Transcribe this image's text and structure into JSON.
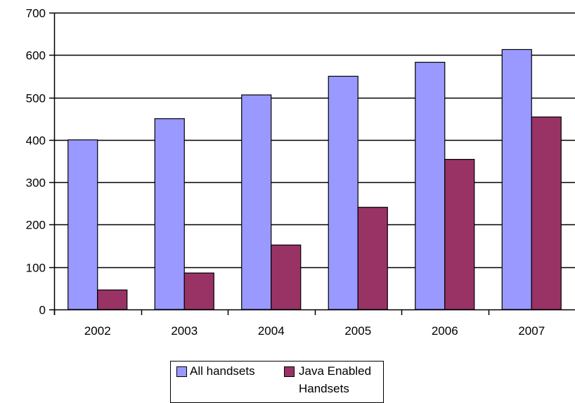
{
  "chart_data": {
    "type": "bar",
    "title": "",
    "xlabel": "",
    "ylabel": "",
    "categories": [
      "2002",
      "2003",
      "2004",
      "2005",
      "2006",
      "2007"
    ],
    "series": [
      {
        "name": "All handsets",
        "color": "#9999ff",
        "values": [
          400,
          450,
          506,
          550,
          583,
          613
        ]
      },
      {
        "name": "Java Enabled Handsets",
        "color": "#993366",
        "values": [
          46,
          86,
          152,
          241,
          354,
          454
        ]
      }
    ],
    "ylim": [
      0,
      700
    ],
    "yticks": [
      0,
      100,
      200,
      300,
      400,
      500,
      600,
      700
    ],
    "grid": true,
    "legend_position": "bottom"
  },
  "legend": {
    "item1": "All handsets",
    "item2_line1": "Java Enabled",
    "item2_line2": "Handsets"
  }
}
